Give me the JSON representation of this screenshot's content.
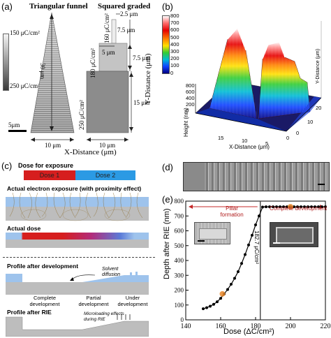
{
  "panel_a": {
    "tag": "(a)",
    "title_left": "Triangular funnel",
    "title_right": "Squared graded",
    "scale_top": "150 μC/cm²",
    "scale_bottom": "250 μC/cm²",
    "scalebar": "5μm",
    "x_axis": "X-Distance (μm)",
    "y_axis": "Y-Distance (μm)",
    "dim_30": "30 μm",
    "dim_10a": "10 μm",
    "dim_10b": "10 μm",
    "dim_2_5": "2.5 μm",
    "dim_160": "160 μC/cm²",
    "dim_7_5a": "7.5 μm",
    "dim_5": "5 μm",
    "dim_180": "180 μC/cm²",
    "dim_7_5b": "7.5 μm",
    "dim_250": "250 μC/cm²",
    "dim_15": "15 μm"
  },
  "panel_b": {
    "tag": "(b)",
    "colorbar_ticks": [
      "800",
      "700",
      "600",
      "500",
      "400",
      "300",
      "200",
      "100",
      "0"
    ],
    "zlabel": "Height (nm)",
    "xlabel": "X-Distance (μm)",
    "ylabel": "Y-Distance (μm)",
    "z_ticks": [
      "800",
      "600",
      "400",
      "200",
      "0"
    ],
    "x_ticks": [
      "15",
      "10",
      "5",
      "0"
    ],
    "y_ticks": [
      "0",
      "10",
      "20"
    ]
  },
  "panel_c": {
    "tag": "(c)",
    "dose_title": "Dose for exposure",
    "dose1": "Dose 1",
    "dose2": "Dose 2",
    "actual_exposure": "Actual electron exposure (with proximity effect)",
    "actual_dose": "Actual dose",
    "profile_dev": "Profile after development",
    "solvent": "Solvent diffusion",
    "complete": "Complete development",
    "partial": "Partial development",
    "under": "Under development",
    "profile_rie": "Profile after RIE",
    "microloading": "Microloading effects during RIE"
  },
  "panel_d": {
    "tag": "(d)"
  },
  "panel_e": {
    "tag": "(e)",
    "pillar": "Pillar formation",
    "complete_dev": "Complete development",
    "threshold": "182.7 μC/cm²",
    "colors": {
      "line": "#000000",
      "marker": "#000000",
      "highlight": "#e8872a",
      "arrow": "#c62828",
      "vline": "#444444"
    }
  },
  "chart_data": {
    "type": "line",
    "xlabel": "Dose (ΔC/cm²)",
    "ylabel": "Depth after RIE (nm)",
    "xlim": [
      140,
      220
    ],
    "ylim": [
      0,
      800
    ],
    "x_ticks": [
      "140",
      "160",
      "180",
      "200",
      "220"
    ],
    "y_ticks": [
      "0",
      "100",
      "200",
      "300",
      "400",
      "500",
      "600",
      "700",
      "800"
    ],
    "series": [
      {
        "x": [
          150,
          152,
          154,
          156,
          158,
          160,
          162,
          164,
          166,
          168,
          170,
          172,
          174,
          176,
          178,
          180,
          182,
          184,
          186,
          188,
          190,
          192,
          194,
          196,
          198,
          200,
          202,
          204,
          206,
          208,
          210,
          212,
          214,
          216,
          218,
          220
        ],
        "y": [
          75,
          82,
          92,
          105,
          122,
          145,
          175,
          205,
          240,
          280,
          325,
          380,
          440,
          505,
          570,
          640,
          700,
          760,
          762,
          762,
          762,
          762,
          762,
          762,
          762,
          762,
          762,
          762,
          762,
          762,
          762,
          762,
          762,
          762,
          762,
          762
        ]
      }
    ],
    "highlight_points": [
      {
        "x": 161,
        "y": 175
      },
      {
        "x": 200,
        "y": 762
      }
    ],
    "threshold_x": 182.7
  }
}
